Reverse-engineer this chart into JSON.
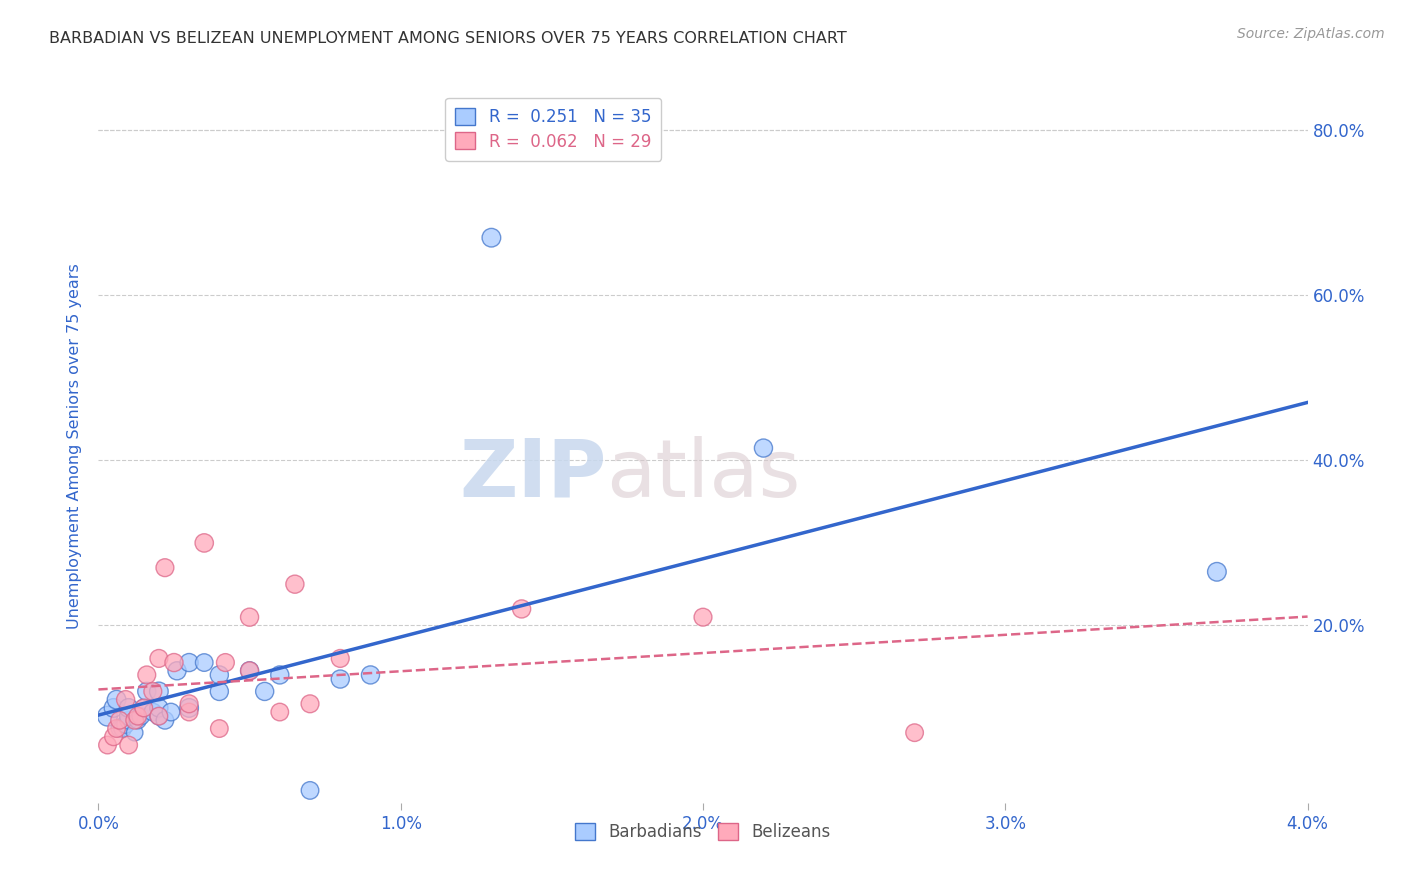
{
  "title": "BARBADIAN VS BELIZEAN UNEMPLOYMENT AMONG SENIORS OVER 75 YEARS CORRELATION CHART",
  "source": "Source: ZipAtlas.com",
  "ylabel": "Unemployment Among Seniors over 75 years",
  "xlim": [
    0.0,
    0.04
  ],
  "ylim": [
    -0.015,
    0.85
  ],
  "xtick_vals": [
    0.0,
    0.01,
    0.02,
    0.03,
    0.04
  ],
  "xtick_labels": [
    "0.0%",
    "1.0%",
    "2.0%",
    "3.0%",
    "4.0%"
  ],
  "yticks_right": [
    0.2,
    0.4,
    0.6,
    0.8
  ],
  "ytick_right_labels": [
    "20.0%",
    "40.0%",
    "60.0%",
    "80.0%"
  ],
  "blue_fill": "#aaccff",
  "blue_edge": "#4477cc",
  "pink_fill": "#ffaabb",
  "pink_edge": "#dd6688",
  "trend_blue": "#3366cc",
  "trend_pink": "#dd6688",
  "legend_R1": "R =  0.251",
  "legend_N1": "N = 35",
  "legend_R2": "R =  0.062",
  "legend_N2": "N = 29",
  "barbadians_x": [
    0.0003,
    0.0005,
    0.0006,
    0.0007,
    0.0008,
    0.0009,
    0.001,
    0.001,
    0.001,
    0.0012,
    0.0013,
    0.0014,
    0.0015,
    0.0016,
    0.0018,
    0.002,
    0.002,
    0.002,
    0.0022,
    0.0024,
    0.0026,
    0.003,
    0.003,
    0.0035,
    0.004,
    0.004,
    0.005,
    0.0055,
    0.006,
    0.007,
    0.008,
    0.009,
    0.013,
    0.022,
    0.037
  ],
  "barbadians_y": [
    0.09,
    0.1,
    0.11,
    0.075,
    0.075,
    0.08,
    0.085,
    0.09,
    0.1,
    0.07,
    0.085,
    0.09,
    0.1,
    0.12,
    0.095,
    0.09,
    0.1,
    0.12,
    0.085,
    0.095,
    0.145,
    0.1,
    0.155,
    0.155,
    0.12,
    0.14,
    0.145,
    0.12,
    0.14,
    0.0,
    0.135,
    0.14,
    0.67,
    0.415,
    0.265
  ],
  "barbadians_sizes": [
    200,
    180,
    180,
    150,
    160,
    160,
    160,
    170,
    180,
    140,
    150,
    160,
    160,
    170,
    160,
    160,
    170,
    180,
    160,
    160,
    170,
    180,
    170,
    160,
    170,
    170,
    170,
    170,
    170,
    160,
    170,
    170,
    180,
    170,
    180
  ],
  "belizeans_x": [
    0.0003,
    0.0005,
    0.0006,
    0.0007,
    0.0009,
    0.001,
    0.0012,
    0.0013,
    0.0015,
    0.0016,
    0.0018,
    0.002,
    0.002,
    0.0022,
    0.0025,
    0.003,
    0.003,
    0.0035,
    0.004,
    0.0042,
    0.005,
    0.005,
    0.006,
    0.0065,
    0.007,
    0.008,
    0.014,
    0.02,
    0.027
  ],
  "belizeans_y": [
    0.055,
    0.065,
    0.075,
    0.085,
    0.11,
    0.055,
    0.085,
    0.09,
    0.1,
    0.14,
    0.12,
    0.09,
    0.16,
    0.27,
    0.155,
    0.095,
    0.105,
    0.3,
    0.075,
    0.155,
    0.145,
    0.21,
    0.095,
    0.25,
    0.105,
    0.16,
    0.22,
    0.21,
    0.07
  ],
  "belizeans_sizes": [
    160,
    160,
    160,
    160,
    170,
    160,
    160,
    160,
    160,
    165,
    165,
    160,
    165,
    165,
    170,
    160,
    165,
    175,
    160,
    165,
    165,
    170,
    160,
    170,
    165,
    165,
    170,
    165,
    160
  ],
  "watermark_zip": "ZIP",
  "watermark_atlas": "atlas",
  "background_color": "#ffffff"
}
